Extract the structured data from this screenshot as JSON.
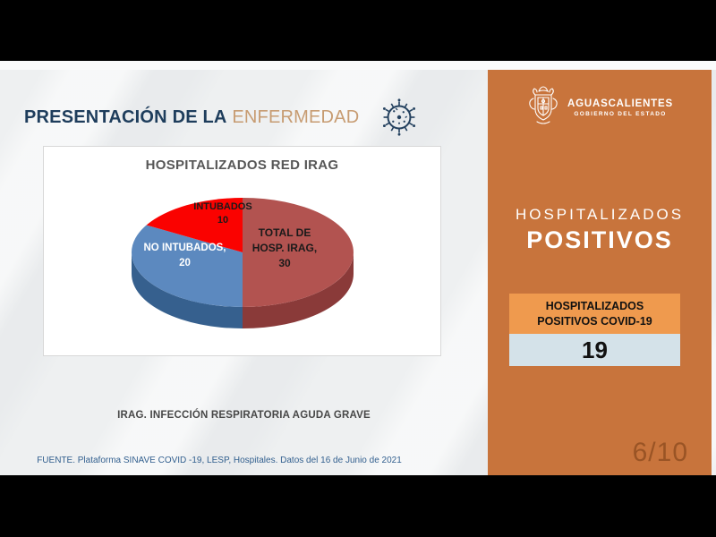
{
  "slide": {
    "title_primary": "PRESENTACIÓN DE LA",
    "title_secondary": "ENFERMEDAD",
    "footnote": "IRAG. INFECCIÓN RESPIRATORIA AGUDA GRAVE",
    "source": "FUENTE. Plataforma SINAVE COVID -19, LESP, Hospitales. Datos del 16 de Junio de 2021"
  },
  "chart_data": {
    "type": "pie",
    "style": "3d",
    "title": "HOSPITALIZADOS RED IRAG",
    "start_angle_deg": 0,
    "direction": "clockwise",
    "total": 60,
    "legend": "none",
    "slices": [
      {
        "label": "TOTAL DE HOSP. IRAG",
        "value": 30,
        "color": "#b25350",
        "side_color": "#8a3a39",
        "label_lines": [
          "TOTAL DE",
          "HOSP. IRAG,",
          "30"
        ],
        "label_color": "#1a1a1a"
      },
      {
        "label": "NO INTUBADOS",
        "value": 20,
        "color": "#5c89bf",
        "side_color": "#36608e",
        "label_lines": [
          "NO INTUBADOS,",
          "20"
        ],
        "label_color": "#ffffff"
      },
      {
        "label": "INTUBADOS",
        "value": 10,
        "color": "#fa0200",
        "side_color": "#b00000",
        "label_lines": [
          "INTUBADOS",
          "10"
        ],
        "label_color": "#1a1a1a"
      }
    ]
  },
  "sidebar": {
    "brand": {
      "name": "AGUASCALIENTES",
      "tagline": "GOBIERNO DEL ESTADO"
    },
    "heading_line1": "HOSPITALIZADOS",
    "heading_line2": "POSITIVOS",
    "stat": {
      "label_line1": "HOSPITALIZADOS",
      "label_line2": "POSITIVOS COVID-19",
      "value": "19"
    },
    "page_indicator": "6/10",
    "colors": {
      "background": "#c8743c",
      "stat_header": "#ef9a4e",
      "stat_value_bg": "#d4e2e9",
      "title_navy": "#1e3d5c",
      "title_tan": "#c79c72"
    }
  }
}
